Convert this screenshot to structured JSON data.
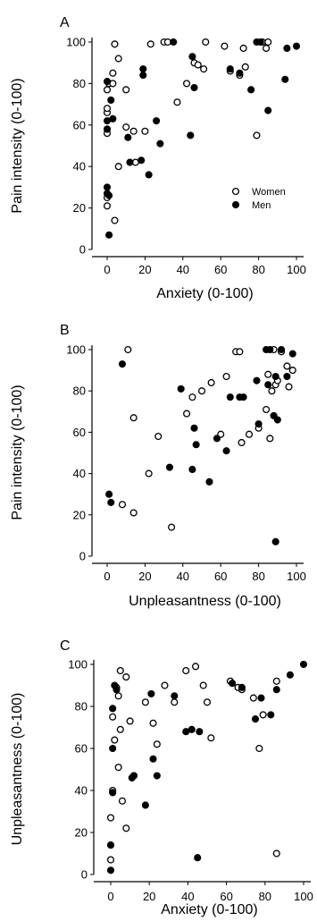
{
  "chart_data": [
    {
      "type": "scatter",
      "panel_label": "A",
      "xlabel": "Anxiety (0-100)",
      "ylabel": "Pain intensity (0-100)",
      "xlim": [
        0,
        100
      ],
      "ylim": [
        0,
        100
      ],
      "xticks": [
        0,
        20,
        40,
        60,
        80,
        100
      ],
      "yticks": [
        0,
        20,
        40,
        60,
        80,
        100
      ],
      "legend": {
        "position": "lower-right",
        "entries": [
          "Women",
          "Men"
        ]
      },
      "series": [
        {
          "name": "Women",
          "marker": "open-circle",
          "points": [
            [
              0,
              21
            ],
            [
              0,
              25
            ],
            [
              0,
              56
            ],
            [
              0,
              58
            ],
            [
              0,
              66
            ],
            [
              0,
              68
            ],
            [
              0,
              77
            ],
            [
              1,
              80
            ],
            [
              3,
              80
            ],
            [
              3,
              85
            ],
            [
              4,
              99
            ],
            [
              4,
              14
            ],
            [
              6,
              40
            ],
            [
              6,
              92
            ],
            [
              10,
              77
            ],
            [
              10,
              59
            ],
            [
              14,
              57
            ],
            [
              15,
              42
            ],
            [
              20,
              57
            ],
            [
              23,
              99
            ],
            [
              30,
              100
            ],
            [
              32,
              100
            ],
            [
              37,
              71
            ],
            [
              42,
              80
            ],
            [
              46,
              90
            ],
            [
              48,
              89
            ],
            [
              51,
              87
            ],
            [
              52,
              100
            ],
            [
              62,
              98
            ],
            [
              65,
              86
            ],
            [
              70,
              84
            ],
            [
              72,
              97
            ],
            [
              73,
              88
            ],
            [
              79,
              55
            ],
            [
              82,
              100
            ],
            [
              84,
              97
            ],
            [
              85,
              100
            ]
          ]
        },
        {
          "name": "Men",
          "marker": "filled-circle",
          "points": [
            [
              0,
              27
            ],
            [
              0,
              30
            ],
            [
              0,
              58
            ],
            [
              0,
              62
            ],
            [
              0,
              81
            ],
            [
              1,
              7
            ],
            [
              1,
              26
            ],
            [
              2,
              72
            ],
            [
              3,
              63
            ],
            [
              11,
              54
            ],
            [
              12,
              42
            ],
            [
              18,
              43
            ],
            [
              19,
              87
            ],
            [
              19,
              84
            ],
            [
              22,
              36
            ],
            [
              26,
              62
            ],
            [
              28,
              51
            ],
            [
              35,
              100
            ],
            [
              44,
              55
            ],
            [
              45,
              93
            ],
            [
              46,
              78
            ],
            [
              65,
              87
            ],
            [
              70,
              85
            ],
            [
              76,
              77
            ],
            [
              79,
              100
            ],
            [
              81,
              100
            ],
            [
              85,
              67
            ],
            [
              94,
              82
            ],
            [
              95,
              97
            ],
            [
              100,
              98
            ]
          ]
        }
      ]
    },
    {
      "type": "scatter",
      "panel_label": "B",
      "xlabel": "Unpleasantness (0-100)",
      "ylabel": "Pain intensity (0-100)",
      "xlim": [
        0,
        100
      ],
      "ylim": [
        0,
        100
      ],
      "xticks": [
        0,
        20,
        40,
        60,
        80,
        100
      ],
      "yticks": [
        0,
        20,
        40,
        60,
        80,
        100
      ],
      "series": [
        {
          "name": "Women",
          "marker": "open-circle",
          "points": [
            [
              8,
              25
            ],
            [
              11,
              100
            ],
            [
              14,
              67
            ],
            [
              14,
              21
            ],
            [
              22,
              40
            ],
            [
              27,
              58
            ],
            [
              34,
              14
            ],
            [
              42,
              69
            ],
            [
              45,
              77
            ],
            [
              50,
              80
            ],
            [
              55,
              84
            ],
            [
              60,
              59
            ],
            [
              63,
              87
            ],
            [
              68,
              99
            ],
            [
              70,
              99
            ],
            [
              71,
              55
            ],
            [
              75,
              59
            ],
            [
              80,
              62
            ],
            [
              84,
              71
            ],
            [
              85,
              88
            ],
            [
              86,
              57
            ],
            [
              87,
              80
            ],
            [
              88,
              100
            ],
            [
              89,
              83
            ],
            [
              90,
              85
            ],
            [
              92,
              99
            ],
            [
              95,
              92
            ],
            [
              96,
              82
            ],
            [
              98,
              90
            ]
          ]
        },
        {
          "name": "Men",
          "marker": "filled-circle",
          "points": [
            [
              1,
              30
            ],
            [
              2,
              26
            ],
            [
              8,
              93
            ],
            [
              33,
              43
            ],
            [
              39,
              81
            ],
            [
              45,
              42
            ],
            [
              46,
              62
            ],
            [
              47,
              54
            ],
            [
              54,
              36
            ],
            [
              58,
              57
            ],
            [
              63,
              51
            ],
            [
              65,
              77
            ],
            [
              70,
              77
            ],
            [
              72,
              77
            ],
            [
              79,
              85
            ],
            [
              80,
              64
            ],
            [
              84,
              100
            ],
            [
              85,
              83
            ],
            [
              86,
              100
            ],
            [
              88,
              68
            ],
            [
              89,
              87
            ],
            [
              90,
              66
            ],
            [
              92,
              100
            ],
            [
              95,
              87
            ],
            [
              98,
              98
            ],
            [
              89,
              7
            ]
          ]
        }
      ]
    },
    {
      "type": "scatter",
      "panel_label": "C",
      "xlabel": "Anxiety (0-100)",
      "ylabel": "Unpleasantness (0-100)",
      "xlim": [
        0,
        100
      ],
      "ylim": [
        0,
        100
      ],
      "xticks": [
        0,
        20,
        40,
        60,
        80,
        100
      ],
      "yticks": [
        0,
        20,
        40,
        60,
        80,
        100
      ],
      "series": [
        {
          "name": "Women",
          "marker": "open-circle",
          "points": [
            [
              0,
              7
            ],
            [
              0,
              14
            ],
            [
              0,
              27
            ],
            [
              1,
              40
            ],
            [
              1,
              75
            ],
            [
              2,
              64
            ],
            [
              3,
              89
            ],
            [
              4,
              51
            ],
            [
              4,
              85
            ],
            [
              5,
              97
            ],
            [
              5,
              69
            ],
            [
              6,
              35
            ],
            [
              8,
              94
            ],
            [
              8,
              22
            ],
            [
              10,
              73
            ],
            [
              12,
              47
            ],
            [
              18,
              82
            ],
            [
              22,
              72
            ],
            [
              24,
              62
            ],
            [
              28,
              90
            ],
            [
              33,
              82
            ],
            [
              39,
              97
            ],
            [
              44,
              99
            ],
            [
              48,
              90
            ],
            [
              50,
              82
            ],
            [
              52,
              65
            ],
            [
              62,
              92
            ],
            [
              66,
              89
            ],
            [
              68,
              88
            ],
            [
              74,
              84
            ],
            [
              77,
              60
            ],
            [
              79,
              76
            ],
            [
              86,
              92
            ],
            [
              86,
              10
            ]
          ]
        },
        {
          "name": "Men",
          "marker": "filled-circle",
          "points": [
            [
              0,
              2
            ],
            [
              0,
              14
            ],
            [
              1,
              39
            ],
            [
              1,
              60
            ],
            [
              1,
              79
            ],
            [
              2,
              90
            ],
            [
              3,
              88
            ],
            [
              11,
              46
            ],
            [
              12,
              47
            ],
            [
              18,
              33
            ],
            [
              22,
              55
            ],
            [
              21,
              86
            ],
            [
              24,
              47
            ],
            [
              33,
              85
            ],
            [
              39,
              68
            ],
            [
              42,
              69
            ],
            [
              45,
              8
            ],
            [
              46,
              68
            ],
            [
              63,
              91
            ],
            [
              68,
              89
            ],
            [
              75,
              74
            ],
            [
              78,
              84
            ],
            [
              83,
              76
            ],
            [
              86,
              88
            ],
            [
              93,
              95
            ],
            [
              100,
              100
            ]
          ]
        }
      ]
    }
  ]
}
